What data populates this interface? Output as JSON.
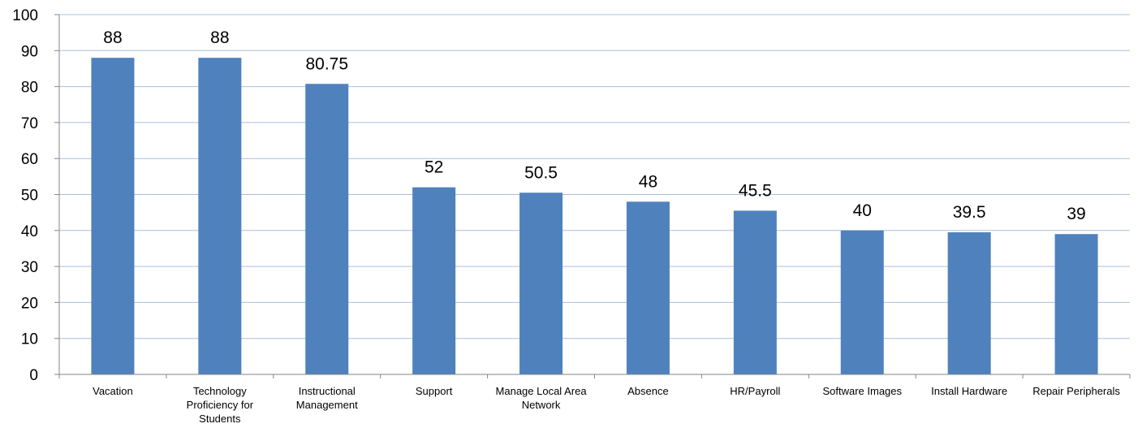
{
  "chart_data": {
    "type": "bar",
    "categories": [
      "Vacation",
      "Technology Proficiency for Students",
      "Instructional Management",
      "Support",
      "Manage Local Area Network",
      "Absence",
      "HR/Payroll",
      "Software Images",
      "Install Hardware",
      "Repair Peripherals"
    ],
    "values": [
      88,
      88,
      80.75,
      52,
      50.5,
      48,
      45.5,
      40,
      39.5,
      39
    ],
    "data_labels": [
      "88",
      "88",
      "80.75",
      "52",
      "50.5",
      "48",
      "45.5",
      "40",
      "39.5",
      "39"
    ],
    "ylim": [
      0,
      100
    ],
    "yticks": [
      0,
      10,
      20,
      30,
      40,
      50,
      60,
      70,
      80,
      90,
      100
    ],
    "grid": true,
    "legend": "none",
    "colors": {
      "bar": "#4f81bd",
      "grid": "#a9c0dc",
      "axis": "#868686"
    }
  }
}
